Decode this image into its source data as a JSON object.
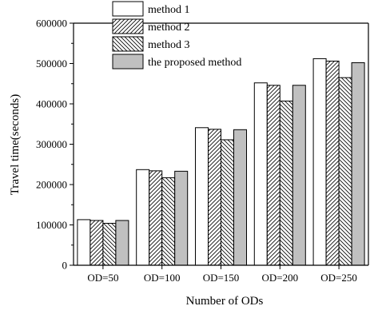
{
  "chart_data": {
    "type": "bar",
    "title": "",
    "xlabel": "Number of ODs",
    "ylabel": "Travel time(seconds)",
    "categories": [
      "OD=50",
      "OD=100",
      "OD=150",
      "OD=200",
      "OD=250"
    ],
    "ylim": [
      0,
      600000
    ],
    "yticks": [
      0,
      100000,
      200000,
      300000,
      400000,
      500000,
      600000
    ],
    "ytick_labels": [
      "0",
      "100000",
      "200000",
      "300000",
      "400000",
      "500000",
      "600000"
    ],
    "grid": false,
    "legend_position": "top-center",
    "series": [
      {
        "name": "method 1",
        "values": [
          113000,
          237000,
          341000,
          452000,
          512000
        ],
        "fill": "#ffffff",
        "pattern": "none"
      },
      {
        "name": "method 2",
        "values": [
          111000,
          234000,
          337000,
          446000,
          506000
        ],
        "fill": "#ffffff",
        "pattern": "hatch-forward"
      },
      {
        "name": "method 3",
        "values": [
          104000,
          217000,
          311000,
          407000,
          465000
        ],
        "fill": "#ffffff",
        "pattern": "hatch-backward"
      },
      {
        "name": "the proposed method",
        "values": [
          111000,
          233000,
          336000,
          446000,
          502000
        ],
        "fill": "#c0c0c0",
        "pattern": "none"
      }
    ]
  }
}
